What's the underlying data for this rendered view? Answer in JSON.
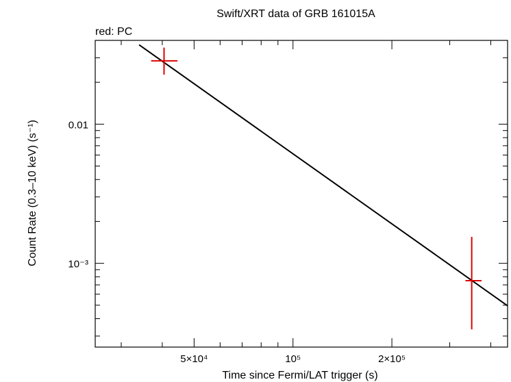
{
  "chart_data": {
    "type": "scatter",
    "title": "Swift/XRT data of GRB 161015A",
    "subtitle": "red: PC",
    "xlabel": "Time since Fermi/LAT trigger (s)",
    "ylabel": "Count Rate (0.3–10 keV) (s⁻¹)",
    "x_scale": "log",
    "y_scale": "log",
    "xlim": [
      25000,
      450000
    ],
    "ylim": [
      0.00025,
      0.04
    ],
    "x_ticks": [
      {
        "value": 50000,
        "label": "5×10⁴"
      },
      {
        "value": 100000,
        "label": "10⁵"
      },
      {
        "value": 200000,
        "label": "2×10⁵"
      }
    ],
    "y_ticks": [
      {
        "value": 0.01,
        "label": "0.01"
      },
      {
        "value": 0.001,
        "label": "10⁻³"
      }
    ],
    "series": [
      {
        "color": "#dd0000",
        "points": [
          {
            "x": 40500,
            "y": 0.0285,
            "x_err": [
              37000,
              44500
            ],
            "y_err": [
              0.0227,
              0.0355
            ]
          },
          {
            "x": 350000,
            "y": 0.00075,
            "x_err": [
              335000,
              375000
            ],
            "y_err": [
              0.000335,
              0.00155
            ]
          }
        ]
      }
    ],
    "fit_line": {
      "color": "#000000",
      "points": [
        {
          "x": 34000,
          "y": 0.0372
        },
        {
          "x": 450000,
          "y": 0.000495
        }
      ]
    },
    "grid": false
  }
}
